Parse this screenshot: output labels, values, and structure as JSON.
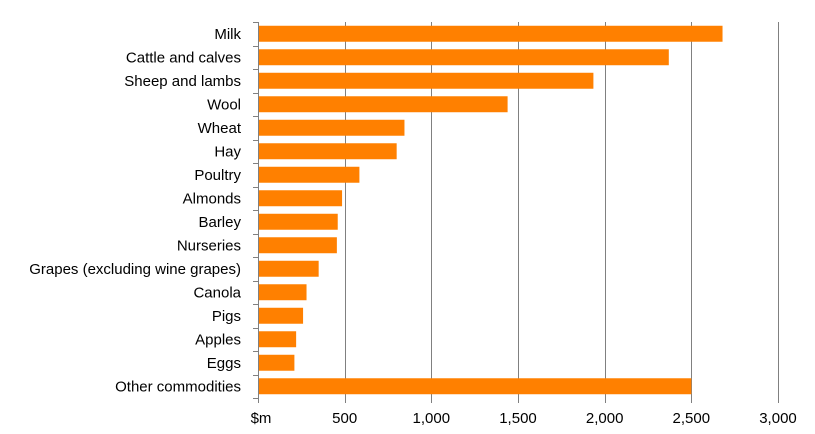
{
  "chart_data": {
    "type": "bar",
    "orientation": "horizontal",
    "title": "",
    "xlabel": "",
    "ylabel": "",
    "axis_unit_label": "$m",
    "categories": [
      "Milk",
      "Cattle and calves",
      "Sheep and lambs",
      "Wool",
      "Wheat",
      "Hay",
      "Poultry",
      "Almonds",
      "Barley",
      "Nurseries",
      "Grapes (excluding wine grapes)",
      "Canola",
      "Pigs",
      "Apples",
      "Eggs",
      "Other commodities"
    ],
    "values": [
      2680,
      2370,
      1935,
      1440,
      845,
      800,
      585,
      485,
      460,
      455,
      350,
      280,
      260,
      220,
      210,
      2500
    ],
    "xlim": [
      0,
      3000
    ],
    "xticks": [
      500,
      1000,
      1500,
      2000,
      2500,
      3000
    ],
    "xtick_labels": [
      "500",
      "1,000",
      "1,500",
      "2,000",
      "2,500",
      "3,000"
    ],
    "grid": "vertical",
    "bar_color": "#FF8000",
    "grid_color": "#808080"
  }
}
